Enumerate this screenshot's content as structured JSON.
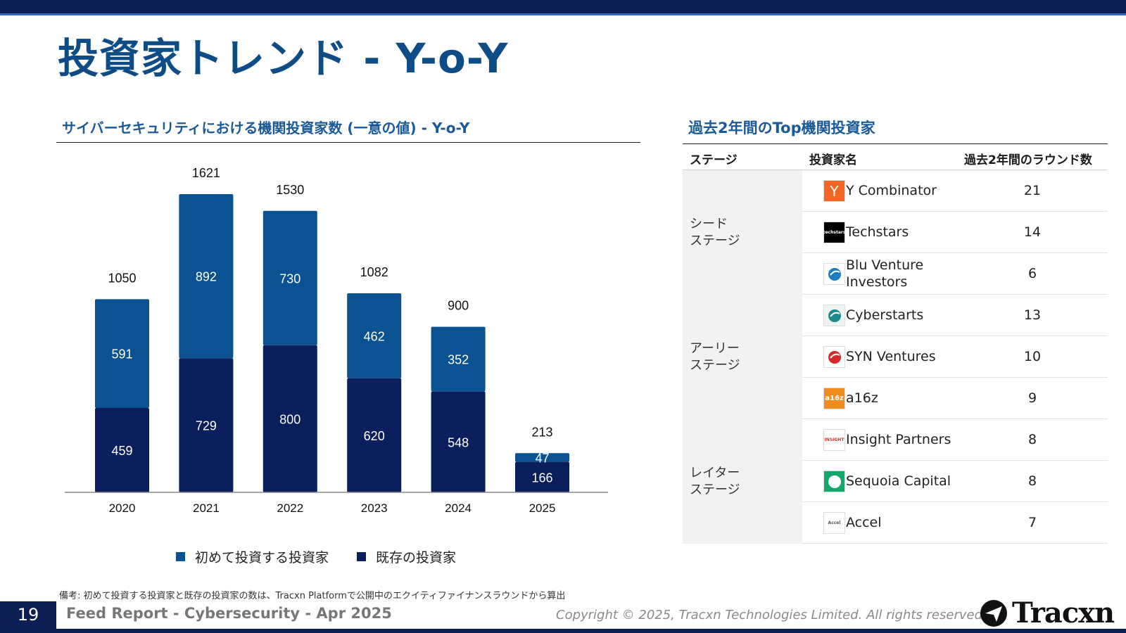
{
  "title": "投資家トレンド - Y-o-Y",
  "chart_heading": "サイバーセキュリティにおける機関投資家数 (一意の値) - Y-o-Y",
  "chart_data": {
    "type": "bar",
    "stacked": true,
    "categories": [
      "2020",
      "2021",
      "2022",
      "2023",
      "2024",
      "2025"
    ],
    "series": [
      {
        "name": "既存の投資家",
        "color": "#0b1f5c",
        "values": [
          459,
          729,
          800,
          620,
          548,
          166
        ]
      },
      {
        "name": "初めて投資する投資家",
        "color": "#0a5291",
        "values": [
          591,
          892,
          730,
          462,
          352,
          47
        ]
      }
    ],
    "totals": [
      1050,
      1621,
      1530,
      1082,
      900,
      213
    ],
    "ylim": [
      0,
      1700
    ],
    "grid": false,
    "legend_position": "bottom",
    "legend_order": [
      "初めて投資する投資家",
      "既存の投資家"
    ]
  },
  "table": {
    "heading": "過去2年間のTop機関投資家",
    "headers": {
      "stage": "ステージ",
      "investor": "投資家名",
      "rounds": "過去2年間のラウンド数"
    },
    "groups": [
      {
        "stage": "シード\nステージ",
        "rows": [
          {
            "name": "Y Combinator",
            "rounds": "21",
            "logo": {
              "text": "Y",
              "bg": "#f26522",
              "fg": "#ffffff"
            }
          },
          {
            "name": "Techstars",
            "rounds": "14",
            "logo": {
              "text": "techstars",
              "bg": "#000000",
              "fg": "#ffffff"
            }
          },
          {
            "name": "Blu Venture Investors",
            "rounds": "6",
            "logo": {
              "text": "",
              "bg": "#ffffff",
              "fg": "#1d7cc4"
            }
          }
        ]
      },
      {
        "stage": "アーリー\nステージ",
        "rows": [
          {
            "name": "Cyberstarts",
            "rounds": "13",
            "logo": {
              "text": "",
              "bg": "#eef3f3",
              "fg": "#1c8a8a"
            }
          },
          {
            "name": "SYN Ventures",
            "rounds": "10",
            "logo": {
              "text": "",
              "bg": "#ffffff",
              "fg": "#d9262b"
            }
          },
          {
            "name": "a16z",
            "rounds": "9",
            "logo": {
              "text": "a16z",
              "bg": "#f08c1f",
              "fg": "#ffffff"
            }
          }
        ]
      },
      {
        "stage": "レイター\nステージ",
        "rows": [
          {
            "name": "Insight Partners",
            "rounds": "8",
            "logo": {
              "text": "INSIGHT",
              "bg": "#ffffff",
              "fg": "#c0392b"
            }
          },
          {
            "name": "Sequoia Capital",
            "rounds": "8",
            "logo": {
              "text": "",
              "bg": "#12a86b",
              "fg": "#ffffff"
            }
          },
          {
            "name": "Accel",
            "rounds": "7",
            "logo": {
              "text": "Accel",
              "bg": "#ffffff",
              "fg": "#555555"
            }
          }
        ]
      }
    ]
  },
  "note": "備考: 初めて投資する投資家と既存の投資家の数は、Tracxn Platformで公開中のエクイティファイナンスラウンドから算出",
  "footer": {
    "page_number": "19",
    "report_title": "Feed Report - Cybersecurity - Apr 2025",
    "copyright": "Copyright © 2025, Tracxn Technologies Limited. All rights reserved.",
    "brand": "Tracxn"
  }
}
